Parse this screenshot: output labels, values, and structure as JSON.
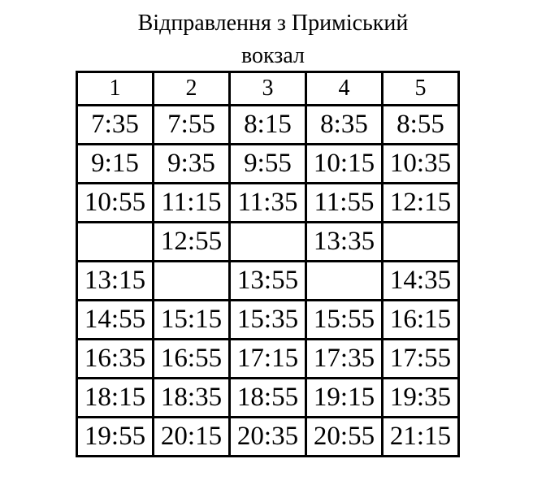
{
  "title_line1": "Відправлення з Приміський",
  "title_line2": "вокзал",
  "columns": [
    "1",
    "2",
    "3",
    "4",
    "5"
  ],
  "rows": [
    [
      "7:35",
      "7:55",
      "8:15",
      "8:35",
      "8:55"
    ],
    [
      "9:15",
      "9:35",
      "9:55",
      "10:15",
      "10:35"
    ],
    [
      "10:55",
      "11:15",
      "11:35",
      "11:55",
      "12:15"
    ],
    [
      "",
      "12:55",
      "",
      "13:35",
      ""
    ],
    [
      "13:15",
      "",
      "13:55",
      "",
      "14:35"
    ],
    [
      "14:55",
      "15:15",
      "15:35",
      "15:55",
      "16:15"
    ],
    [
      "16:35",
      "16:55",
      "17:15",
      "17:35",
      "17:55"
    ],
    [
      "18:15",
      "18:35",
      "18:55",
      "19:15",
      "19:35"
    ],
    [
      "19:55",
      "20:15",
      "20:35",
      "20:55",
      "21:15"
    ]
  ]
}
